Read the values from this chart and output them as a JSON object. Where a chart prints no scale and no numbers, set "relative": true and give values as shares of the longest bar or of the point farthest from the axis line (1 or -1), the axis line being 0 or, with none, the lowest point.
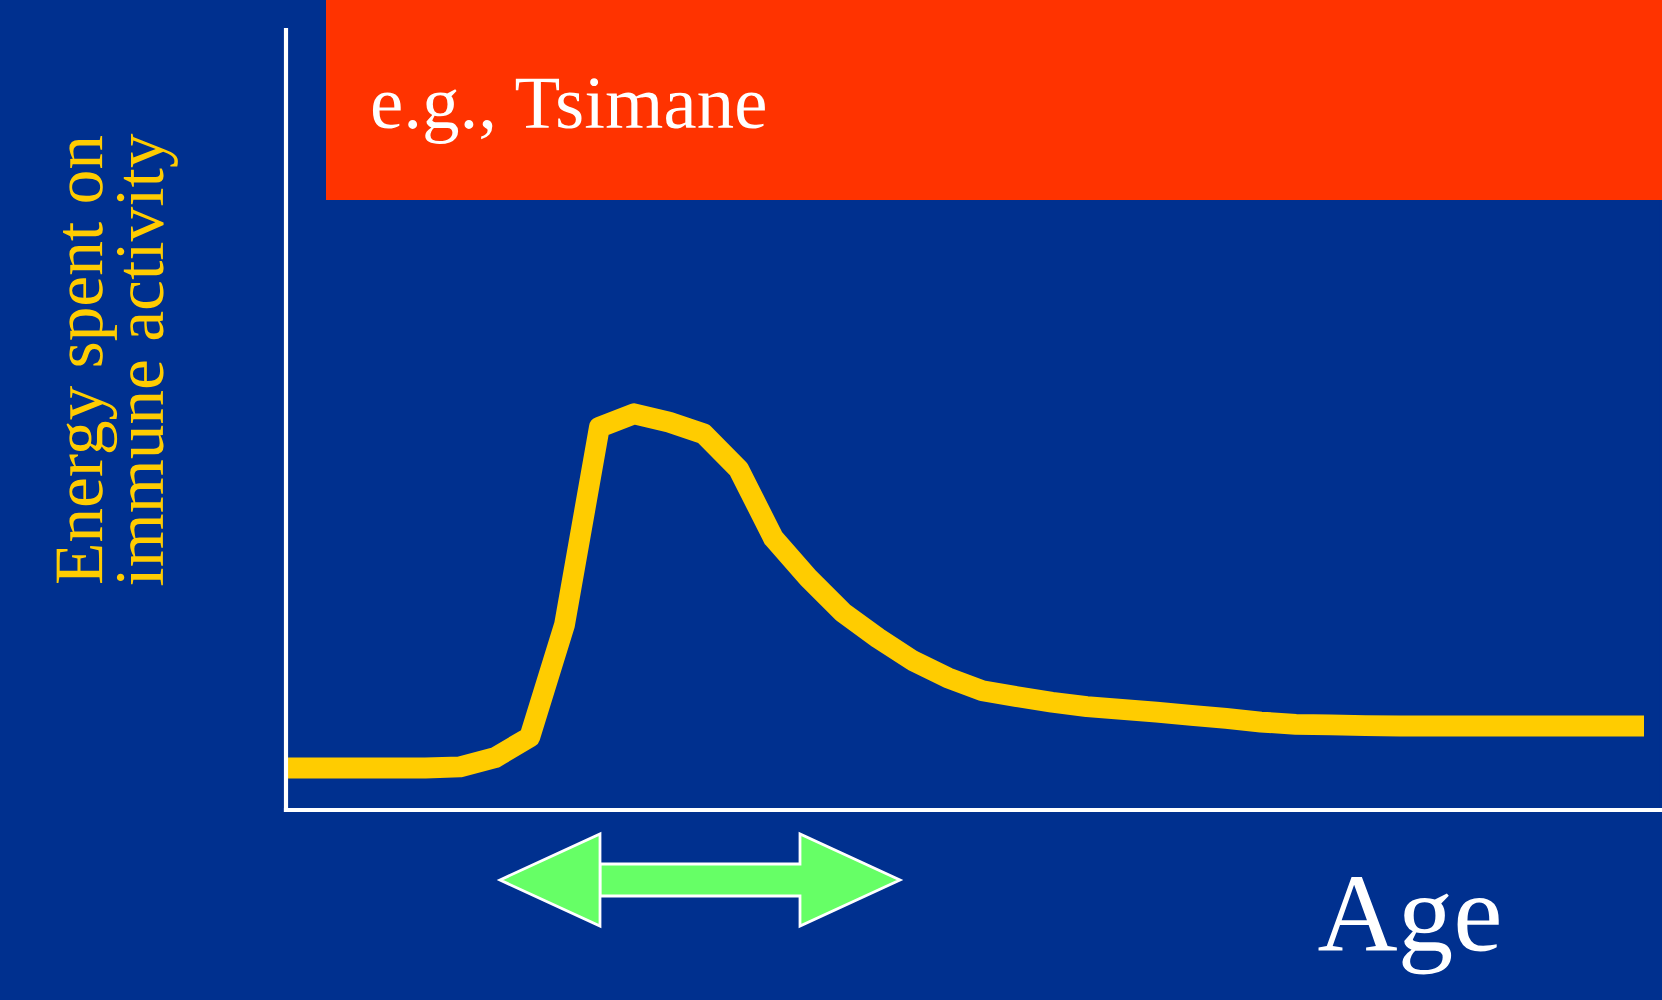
{
  "chart_data": {
    "type": "line",
    "title": "e.g., Tsimane",
    "xlabel": "Age",
    "ylabel": "Energy spent on\nimmune activity",
    "relative": true,
    "tick_labels": false,
    "categories": [
      null,
      null,
      null,
      null,
      null,
      null,
      null,
      null,
      null,
      null,
      null,
      null,
      null,
      null,
      null,
      null,
      null,
      null,
      null,
      null,
      null,
      null,
      null,
      null,
      null,
      null,
      null,
      null,
      null,
      null,
      null,
      null,
      null,
      null,
      null,
      null,
      null,
      null,
      null,
      null
    ],
    "series": [
      {
        "color": "#ffcc00",
        "values": [
          0.106,
          0.106,
          0.106,
          0.106,
          0.106,
          0.109,
          0.132,
          0.184,
          0.468,
          0.966,
          1.0,
          0.979,
          0.949,
          0.86,
          0.686,
          0.586,
          0.498,
          0.434,
          0.377,
          0.334,
          0.301,
          0.286,
          0.272,
          0.261,
          0.254,
          0.247,
          0.239,
          0.231,
          0.222,
          0.216,
          0.215,
          0.213,
          0.212,
          0.212,
          0.212,
          0.212,
          0.212,
          0.212,
          0.212,
          0.212
        ]
      }
    ]
  }
}
